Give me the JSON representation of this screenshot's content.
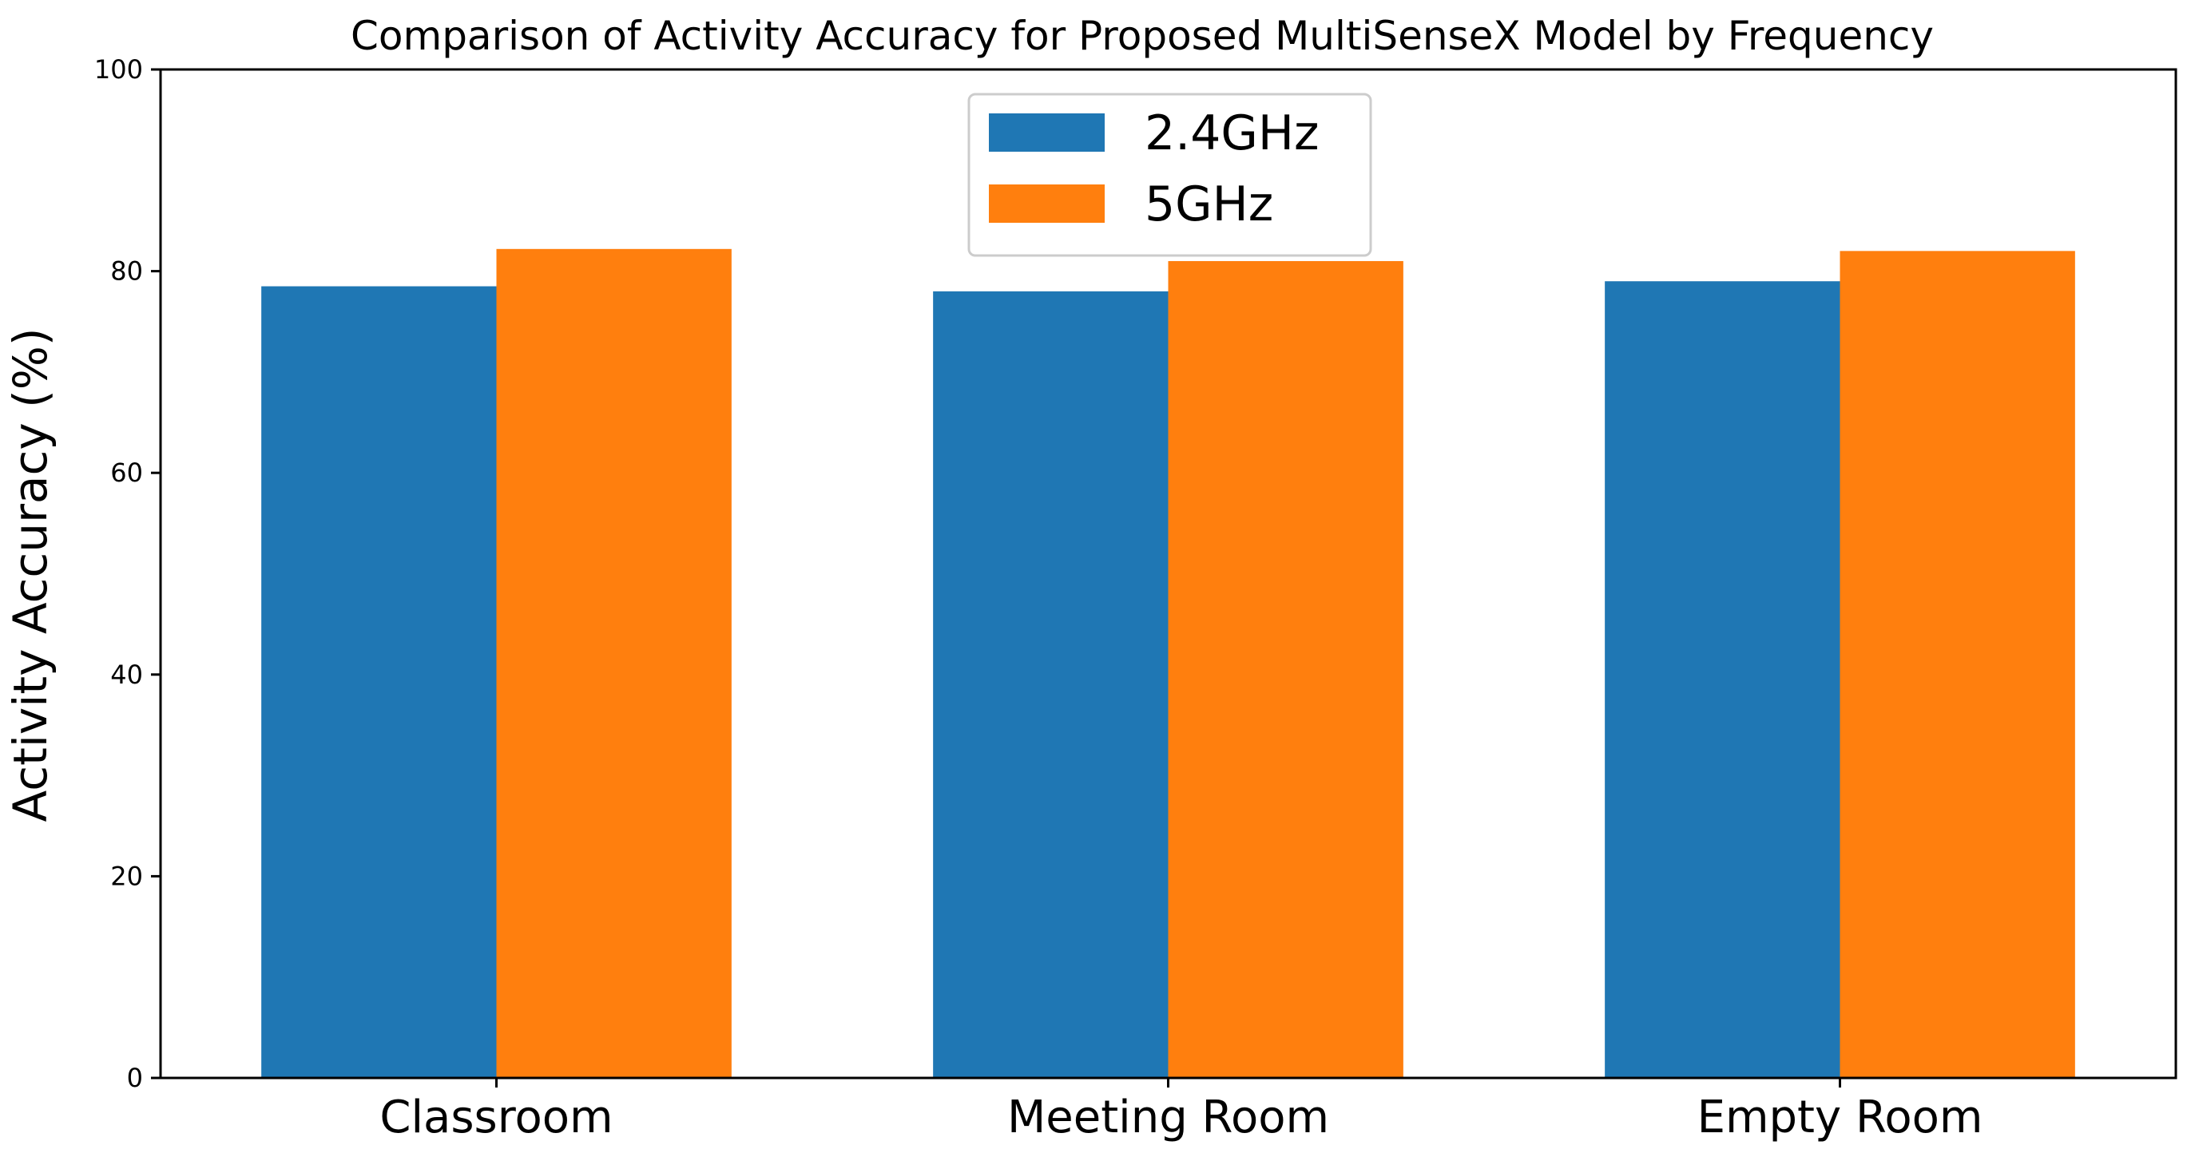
{
  "chart_data": {
    "type": "bar",
    "title": "Comparison of Activity Accuracy for Proposed MultiSenseX Model by Frequency",
    "xlabel": "",
    "ylabel": "Activity Accuracy (%)",
    "categories": [
      "Classroom",
      "Meeting Room",
      "Empty Room"
    ],
    "series": [
      {
        "name": "2.4GHz",
        "color": "#1f77b4",
        "values": [
          78.5,
          78.0,
          79.0
        ]
      },
      {
        "name": "5GHz",
        "color": "#ff7f0e",
        "values": [
          82.2,
          81.0,
          82.0
        ]
      }
    ],
    "ylim": [
      0,
      100
    ],
    "yticks": [
      0,
      20,
      40,
      60,
      80,
      100
    ],
    "grid": false,
    "legend_position": "top-center"
  }
}
